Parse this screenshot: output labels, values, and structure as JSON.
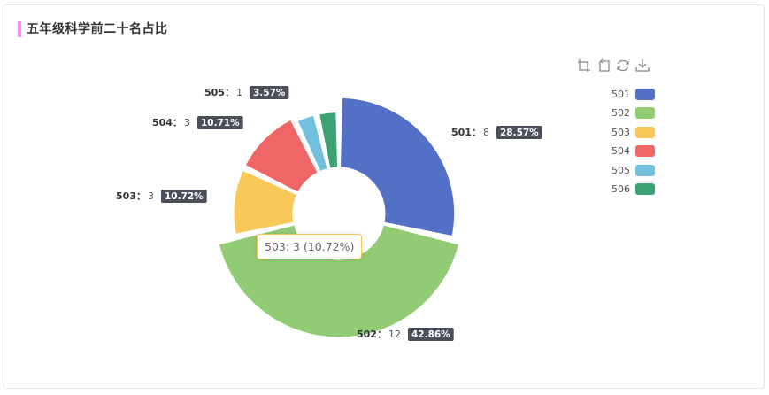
{
  "header": {
    "title": "五年级科学前二十名占比",
    "accent_color": "#f78ef6"
  },
  "toolbox": [
    {
      "name": "zoom-icon"
    },
    {
      "name": "zoom-reset-icon"
    },
    {
      "name": "restore-icon"
    },
    {
      "name": "download-icon"
    }
  ],
  "tooltip": {
    "text": "503: 3 (10.72%)",
    "border_color": "#f6c659"
  },
  "chart_data": {
    "type": "pie",
    "variant": "rose-donut",
    "title": "五年级科学前二十名占比",
    "legend_position": "right",
    "series": [
      {
        "name": "501",
        "value": 8,
        "percent": "28.57%",
        "color": "#5470c6"
      },
      {
        "name": "502",
        "value": 12,
        "percent": "42.86%",
        "color": "#91cc75"
      },
      {
        "name": "503",
        "value": 3,
        "percent": "10.72%",
        "color": "#fac858"
      },
      {
        "name": "504",
        "value": 3,
        "percent": "10.71%",
        "color": "#ee6666"
      },
      {
        "name": "505",
        "value": 1,
        "percent": "3.57%",
        "color": "#73c0de"
      },
      {
        "name": "506",
        "value": 1,
        "percent": "",
        "color": "#3ba272"
      }
    ]
  }
}
